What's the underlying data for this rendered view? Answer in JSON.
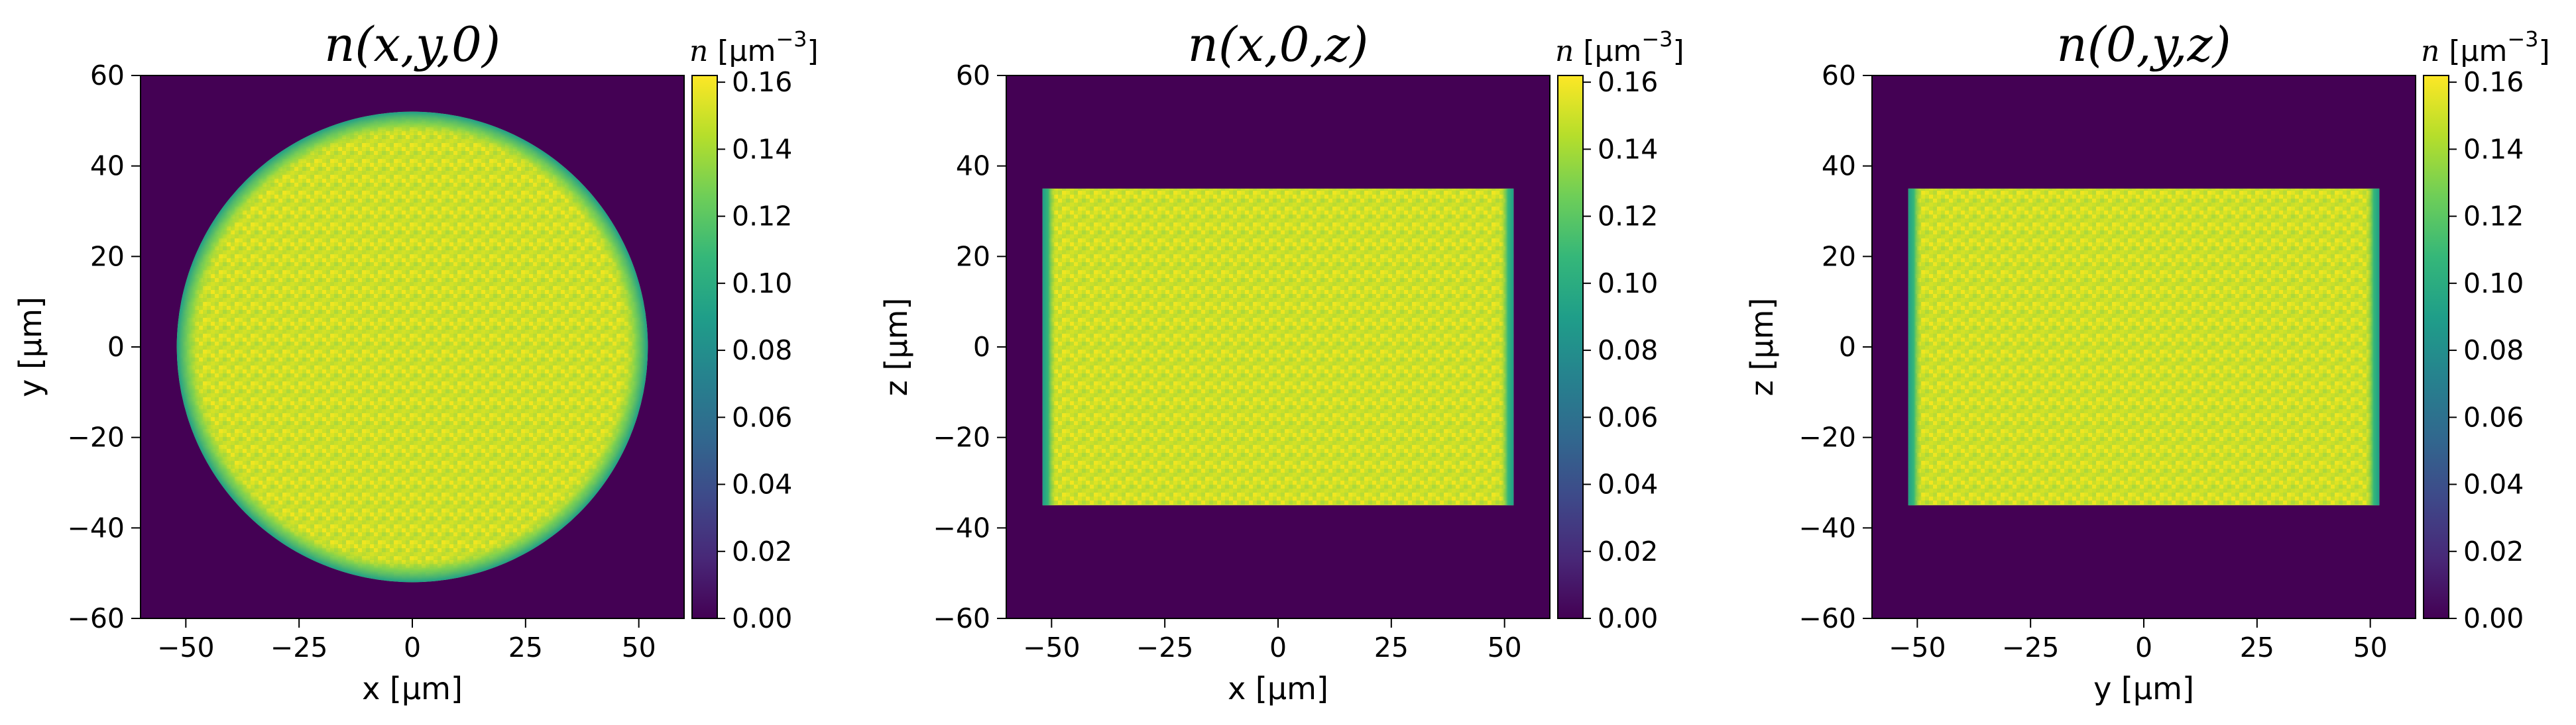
{
  "chart_data": [
    {
      "type": "heatmap",
      "title": "n(x,y,0)",
      "xlabel": "x [µm]",
      "ylabel": "y [µm]",
      "xlim": [
        -60,
        60
      ],
      "ylim": [
        -60,
        60
      ],
      "x_ticks": [
        "−50",
        "−25",
        "0",
        "25",
        "50"
      ],
      "y_ticks": [
        "60",
        "40",
        "20",
        "0",
        "−20",
        "−40",
        "−60"
      ],
      "shape": "disk",
      "radius": 52,
      "edge_width": 3,
      "colorbar": {
        "label_symbol": "n",
        "label_unit": "[µm",
        "label_exponent": "−3",
        "label_close": "]",
        "range": [
          0,
          0.162
        ],
        "ticks": [
          "0.16",
          "0.14",
          "0.12",
          "0.10",
          "0.08",
          "0.06",
          "0.04",
          "0.02",
          "0.00"
        ]
      }
    },
    {
      "type": "heatmap",
      "title": "n(x,0,z)",
      "xlabel": "x [µm]",
      "ylabel": "z [µm]",
      "xlim": [
        -60,
        60
      ],
      "ylim": [
        -60,
        60
      ],
      "x_ticks": [
        "−50",
        "−25",
        "0",
        "25",
        "50"
      ],
      "y_ticks": [
        "60",
        "40",
        "20",
        "0",
        "−20",
        "−40",
        "−60"
      ],
      "shape": "rect",
      "half_width": 52,
      "half_height": 35,
      "edge_width": 2,
      "colorbar": {
        "label_symbol": "n",
        "label_unit": "[µm",
        "label_exponent": "−3",
        "label_close": "]",
        "range": [
          0,
          0.162
        ],
        "ticks": [
          "0.16",
          "0.14",
          "0.12",
          "0.10",
          "0.08",
          "0.06",
          "0.04",
          "0.02",
          "0.00"
        ]
      }
    },
    {
      "type": "heatmap",
      "title": "n(0,y,z)",
      "xlabel": "y [µm]",
      "ylabel": "z [µm]",
      "xlim": [
        -60,
        60
      ],
      "ylim": [
        -60,
        60
      ],
      "x_ticks": [
        "−50",
        "−25",
        "0",
        "25",
        "50"
      ],
      "y_ticks": [
        "60",
        "40",
        "20",
        "0",
        "−20",
        "−40",
        "−60"
      ],
      "shape": "rect",
      "half_width": 52,
      "half_height": 35,
      "edge_width": 2,
      "colorbar": {
        "label_symbol": "n",
        "label_unit": "[µm",
        "label_exponent": "−3",
        "label_close": "]",
        "range": [
          0,
          0.162
        ],
        "ticks": [
          "0.16",
          "0.14",
          "0.12",
          "0.10",
          "0.08",
          "0.06",
          "0.04",
          "0.02",
          "0.00"
        ]
      }
    }
  ],
  "colors": {
    "background": "#440154",
    "colormap": [
      "#440154",
      "#482878",
      "#3e4989",
      "#31688e",
      "#26828e",
      "#1f9e89",
      "#35b779",
      "#6ece58",
      "#b5de2b",
      "#fde725"
    ]
  }
}
